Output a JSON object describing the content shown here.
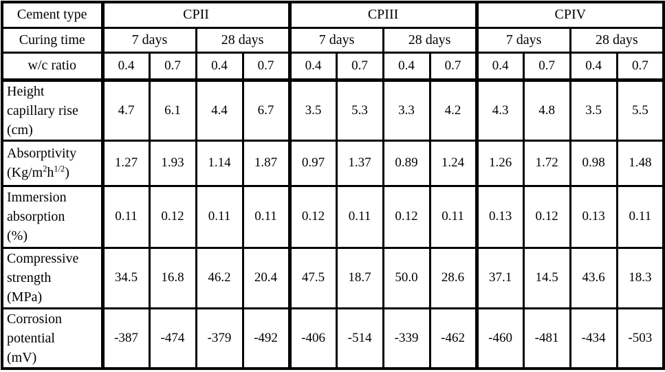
{
  "table": {
    "header": {
      "cement_type_label": "Cement type",
      "cement_types": [
        "CPII",
        "CPIII",
        "CPIV"
      ],
      "curing_time_label": "Curing time",
      "curing_times": [
        "7 days",
        "28 days"
      ],
      "wc_ratio_label": "w/c ratio",
      "wc_ratios": [
        "0.4",
        "0.7"
      ]
    },
    "rows": [
      {
        "label_lines": [
          "Height",
          "capillary rise",
          "(cm)"
        ],
        "values": [
          "4.7",
          "6.1",
          "4.4",
          "6.7",
          "3.5",
          "5.3",
          "3.3",
          "4.2",
          "4.3",
          "4.8",
          "3.5",
          "5.5"
        ]
      },
      {
        "label_lines": [
          "Absorptivity",
          "(Kg/m^{2}h^{1/2})"
        ],
        "values": [
          "1.27",
          "1.93",
          "1.14",
          "1.87",
          "0.97",
          "1.37",
          "0.89",
          "1.24",
          "1.26",
          "1.72",
          "0.98",
          "1.48"
        ]
      },
      {
        "label_lines": [
          "Immersion",
          "absorption",
          "(%)"
        ],
        "values": [
          "0.11",
          "0.12",
          "0.11",
          "0.11",
          "0.12",
          "0.11",
          "0.12",
          "0.11",
          "0.13",
          "0.12",
          "0.13",
          "0.11"
        ]
      },
      {
        "label_lines": [
          "Compressive",
          "strength",
          "(MPa)"
        ],
        "values": [
          "34.5",
          "16.8",
          "46.2",
          "20.4",
          "47.5",
          "18.7",
          "50.0",
          "28.6",
          "37.1",
          "14.5",
          "43.6",
          "18.3"
        ]
      },
      {
        "label_lines": [
          "Corrosion",
          "potential",
          "(mV)"
        ],
        "values": [
          "-387",
          "-474",
          "-379",
          "-492",
          "-406",
          "-514",
          "-339",
          "-462",
          "-460",
          "-481",
          "-434",
          "-503"
        ]
      }
    ]
  },
  "chart_data": {
    "type": "table",
    "title": "",
    "column_structure": {
      "cement_types": [
        "CPII",
        "CPIII",
        "CPIV"
      ],
      "curing_times_per_cement": [
        "7 days",
        "28 days"
      ],
      "wc_ratios_per_curing_time": [
        0.4,
        0.7
      ],
      "column_order": [
        "CPII 7 days 0.4",
        "CPII 7 days 0.7",
        "CPII 28 days 0.4",
        "CPII 28 days 0.7",
        "CPIII 7 days 0.4",
        "CPIII 7 days 0.7",
        "CPIII 28 days 0.4",
        "CPIII 28 days 0.7",
        "CPIV 7 days 0.4",
        "CPIV 7 days 0.7",
        "CPIV 28 days 0.4",
        "CPIV 28 days 0.7"
      ]
    },
    "rows": [
      {
        "parameter": "Height capillary rise (cm)",
        "values": [
          4.7,
          6.1,
          4.4,
          6.7,
          3.5,
          5.3,
          3.3,
          4.2,
          4.3,
          4.8,
          3.5,
          5.5
        ]
      },
      {
        "parameter": "Absorptivity (Kg/m2h1/2)",
        "values": [
          1.27,
          1.93,
          1.14,
          1.87,
          0.97,
          1.37,
          0.89,
          1.24,
          1.26,
          1.72,
          0.98,
          1.48
        ]
      },
      {
        "parameter": "Immersion absorption (%)",
        "values": [
          0.11,
          0.12,
          0.11,
          0.11,
          0.12,
          0.11,
          0.12,
          0.11,
          0.13,
          0.12,
          0.13,
          0.11
        ]
      },
      {
        "parameter": "Compressive strength (MPa)",
        "values": [
          34.5,
          16.8,
          46.2,
          20.4,
          47.5,
          18.7,
          50.0,
          28.6,
          37.1,
          14.5,
          43.6,
          18.3
        ]
      },
      {
        "parameter": "Corrosion potential (mV)",
        "values": [
          -387,
          -474,
          -379,
          -492,
          -406,
          -514,
          -339,
          -462,
          -460,
          -481,
          -434,
          -503
        ]
      }
    ]
  }
}
